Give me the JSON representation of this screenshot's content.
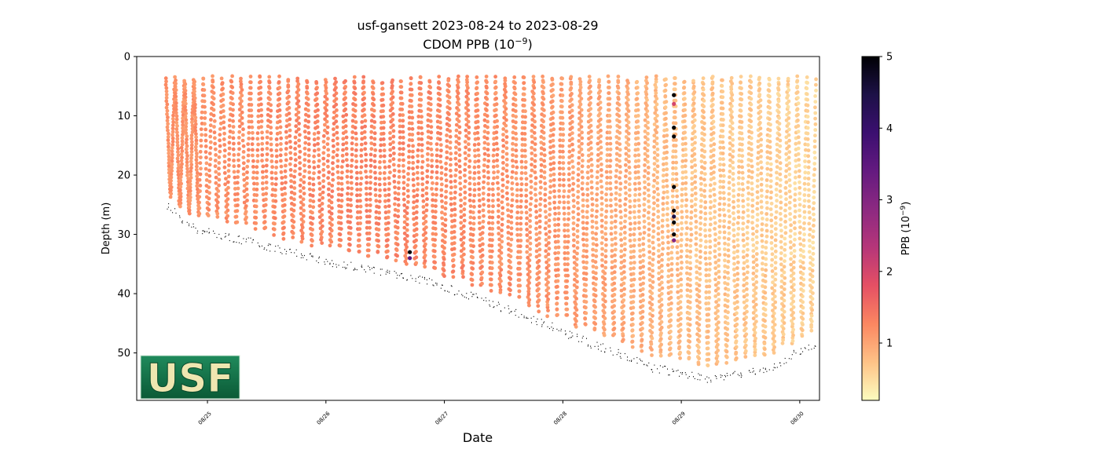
{
  "title_line1": "usf-gansett 2023-08-24 to 2023-08-29",
  "title_line2_main": "CDOM PPB (10",
  "title_line2_exp": "−9",
  "title_line2_close": ")",
  "xlabel": "Date",
  "ylabel": "Depth (m)",
  "logo_text": "USF",
  "colors": {
    "logo_green_top": "#1f8a5c",
    "logo_green_bottom": "#0b5a36",
    "logo_text": "#efe6b0",
    "bathymetry": "#000000"
  },
  "colorbar": {
    "label_main": "PPB (10",
    "label_exp": "−9",
    "label_close": ")",
    "min": 0.2,
    "max": 5,
    "ticks": [
      {
        "value": 1,
        "label": "1"
      },
      {
        "value": 2,
        "label": "2"
      },
      {
        "value": 3,
        "label": "3"
      },
      {
        "value": 4,
        "label": "4"
      },
      {
        "value": 5,
        "label": "5"
      }
    ],
    "colormap": "magma_r",
    "stops": [
      "#fcfdbf",
      "#fec287",
      "#fb8761",
      "#e55064",
      "#b63679",
      "#8c2981",
      "#641a80",
      "#3b0f70",
      "#1d1147",
      "#000004"
    ]
  },
  "chart_data": {
    "type": "scatter",
    "title": "usf-gansett 2023-08-24 to 2023-08-29\nCDOM PPB (10^-9)",
    "xlabel": "Date",
    "ylabel": "Depth (m)",
    "x_axis_type": "date",
    "xlim": [
      "2023-08-24T09:40",
      "2023-08-30T04:00"
    ],
    "ylim": [
      58,
      0
    ],
    "y_inverted": true,
    "y_ticks": [
      0,
      10,
      20,
      30,
      40,
      50
    ],
    "x_ticks": [
      {
        "date": "2023-08-25",
        "label": "08/25"
      },
      {
        "date": "2023-08-26",
        "label": "08/26"
      },
      {
        "date": "2023-08-27",
        "label": "08/27"
      },
      {
        "date": "2023-08-28",
        "label": "08/28"
      },
      {
        "date": "2023-08-29",
        "label": "08/29"
      },
      {
        "date": "2023-08-30",
        "label": "08/30"
      }
    ],
    "grid": false,
    "color_variable": "CDOM PPB (10^-9)",
    "profile_start": "2023-08-24T16:00",
    "profile_end": "2023-08-30T03:00",
    "min_depth_m": 4,
    "bottom_depth_profile": [
      {
        "date": "2023-08-24T16:00",
        "depth": 25
      },
      {
        "date": "2023-08-24T21:00",
        "depth": 28.5
      },
      {
        "date": "2023-08-25T12:00",
        "depth": 31.5
      },
      {
        "date": "2023-08-26T00:00",
        "depth": 34
      },
      {
        "date": "2023-08-26T18:00",
        "depth": 37
      },
      {
        "date": "2023-08-27T06:00",
        "depth": 40
      },
      {
        "date": "2023-08-27T18:00",
        "depth": 44
      },
      {
        "date": "2023-08-28T06:00",
        "depth": 48
      },
      {
        "date": "2023-08-28T18:00",
        "depth": 52
      },
      {
        "date": "2023-08-29T06:00",
        "depth": 54
      },
      {
        "date": "2023-08-29T18:00",
        "depth": 52
      },
      {
        "date": "2023-08-30T03:00",
        "depth": 48
      }
    ],
    "cdom_trend": [
      {
        "date": "2023-08-24T16:00",
        "value": 1.15
      },
      {
        "date": "2023-08-26T06:00",
        "value": 1.3
      },
      {
        "date": "2023-08-27T00:00",
        "value": 1.25
      },
      {
        "date": "2023-08-28T00:00",
        "value": 1.1
      },
      {
        "date": "2023-08-29T00:00",
        "value": 0.75
      },
      {
        "date": "2023-08-30T03:00",
        "value": 0.55
      }
    ],
    "notable_points": [
      {
        "date": "2023-08-26T17:00",
        "depth": 33,
        "value": 5
      },
      {
        "date": "2023-08-26T17:00",
        "depth": 34,
        "value": 3.5
      },
      {
        "date": "2023-08-28T22:30",
        "depth": 6.5,
        "value": 5
      },
      {
        "date": "2023-08-28T22:30",
        "depth": 8,
        "value": 2
      },
      {
        "date": "2023-08-28T22:30",
        "depth": 12,
        "value": 5
      },
      {
        "date": "2023-08-28T22:30",
        "depth": 13.5,
        "value": 5
      },
      {
        "date": "2023-08-28T22:30",
        "depth": 22,
        "value": 5
      },
      {
        "date": "2023-08-28T22:30",
        "depth": 26,
        "value": 5
      },
      {
        "date": "2023-08-28T22:30",
        "depth": 27,
        "value": 4.5
      },
      {
        "date": "2023-08-28T22:30",
        "depth": 28,
        "value": 5
      },
      {
        "date": "2023-08-28T22:30",
        "depth": 30,
        "value": 5
      },
      {
        "date": "2023-08-28T22:30",
        "depth": 31,
        "value": 3
      }
    ]
  }
}
